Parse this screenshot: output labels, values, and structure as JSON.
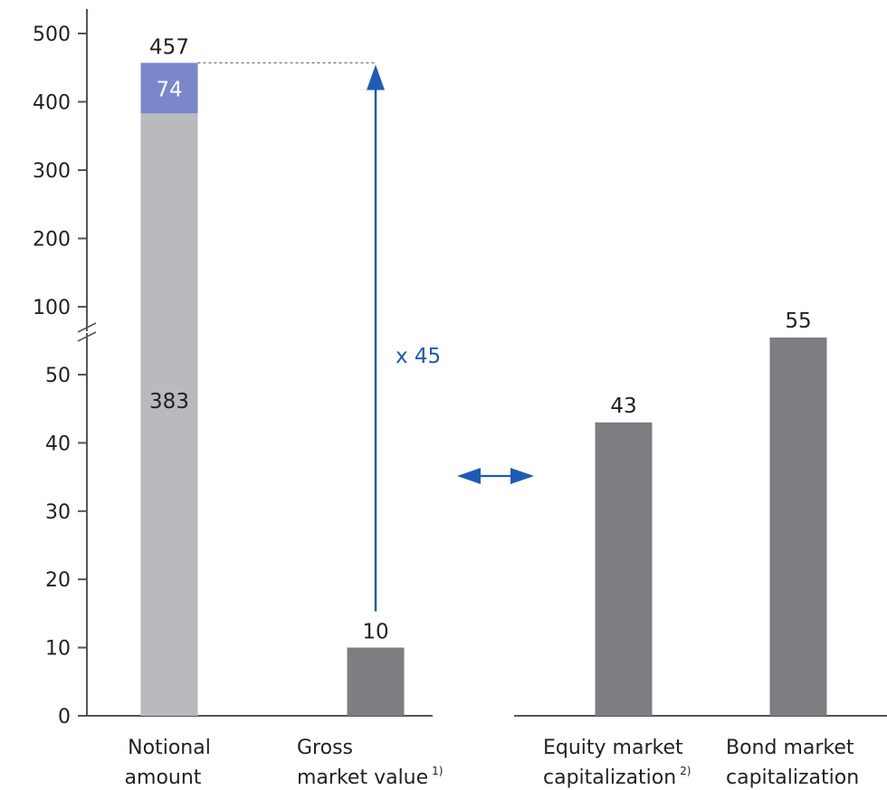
{
  "chart_data": {
    "type": "bar",
    "y_axis": {
      "lower_ticks": [
        "0",
        "10",
        "20",
        "30",
        "40",
        "50"
      ],
      "upper_ticks": [
        "100",
        "200",
        "300",
        "400",
        "500"
      ],
      "axis_break": true
    },
    "categories": [
      {
        "line1": "Notional",
        "line2": "amount",
        "sup2": ""
      },
      {
        "line1": "Gross",
        "line2": "market value",
        "sup2": "1)"
      },
      {
        "line1": "Equity market",
        "line2": "capitalization",
        "sup2": "2)"
      },
      {
        "line1": "Bond market",
        "line2": "capitalization",
        "sup2": ""
      }
    ],
    "notional_amount": {
      "total": 457,
      "segments": [
        {
          "value": 383,
          "label": "383"
        },
        {
          "value": 74,
          "label": "74"
        }
      ],
      "total_label": "457"
    },
    "values": [
      457,
      10,
      43,
      55
    ],
    "value_labels": [
      "457",
      "10",
      "43",
      "55"
    ],
    "multiplier_label": "x 45",
    "colors": {
      "notional_base": "#b9babd",
      "notional_top": "#7a87cc",
      "bar": "#7d7e82",
      "arrow": "#1e5bb4",
      "axis": "#555555"
    }
  }
}
